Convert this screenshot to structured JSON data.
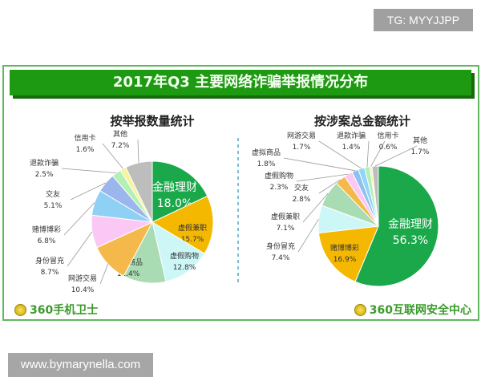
{
  "watermark_top": "TG: MYYJJPP",
  "watermark_bottom": "www.bymarynella.com",
  "title": "2017年Q3 主要网络诈骗举报情况分布",
  "logos": {
    "left": "360手机卫士",
    "right": "360互联网安全中心"
  },
  "chart_data": [
    {
      "type": "pie",
      "title": "按举报数量统计",
      "unit": "%",
      "slices": [
        {
          "label": "金融理财",
          "value": 18.0,
          "color": "#1aa84a",
          "placement": "inside"
        },
        {
          "label": "虚假兼职",
          "value": 15.7,
          "color": "#f5b800",
          "placement": "inside"
        },
        {
          "label": "虚假购物",
          "value": 12.8,
          "color": "#cdf6f6",
          "placement": "inside"
        },
        {
          "label": "虚拟商品",
          "value": 11.4,
          "color": "#a9dcb2",
          "placement": "inside"
        },
        {
          "label": "网游交易",
          "value": 10.4,
          "color": "#f4b94a",
          "placement": "outside"
        },
        {
          "label": "身份冒充",
          "value": 8.7,
          "color": "#fbc8f6",
          "placement": "outside"
        },
        {
          "label": "赌博博彩",
          "value": 6.8,
          "color": "#8fd0f5",
          "placement": "outside"
        },
        {
          "label": "交友",
          "value": 5.1,
          "color": "#9bb6ec",
          "placement": "outside"
        },
        {
          "label": "退款诈骗",
          "value": 2.5,
          "color": "#b2f0b4",
          "placement": "outside"
        },
        {
          "label": "信用卡",
          "value": 1.6,
          "color": "#f6f59c",
          "placement": "outside"
        },
        {
          "label": "其他",
          "value": 7.2,
          "color": "#bdbdbd",
          "placement": "outside"
        }
      ]
    },
    {
      "type": "pie",
      "title": "按涉案总金额统计",
      "unit": "%",
      "slices": [
        {
          "label": "金融理财",
          "value": 56.3,
          "color": "#1aa84a",
          "placement": "inside"
        },
        {
          "label": "赌博博彩",
          "value": 16.9,
          "color": "#f5b800",
          "placement": "inside"
        },
        {
          "label": "身份冒充",
          "value": 7.4,
          "color": "#cdf6f6",
          "placement": "outside"
        },
        {
          "label": "虚假兼职",
          "value": 7.1,
          "color": "#a9dcb2",
          "placement": "outside"
        },
        {
          "label": "交友",
          "value": 2.8,
          "color": "#f4b94a",
          "placement": "outside"
        },
        {
          "label": "虚假购物",
          "value": 2.3,
          "color": "#fbc8f6",
          "placement": "outside"
        },
        {
          "label": "虚拟商品",
          "value": 1.8,
          "color": "#8fc0f0",
          "placement": "outside"
        },
        {
          "label": "网游交易",
          "value": 1.7,
          "color": "#90d6f8",
          "placement": "outside"
        },
        {
          "label": "退款诈骗",
          "value": 1.4,
          "color": "#b2f0b4",
          "placement": "outside"
        },
        {
          "label": "信用卡",
          "value": 0.6,
          "color": "#f6f59c",
          "placement": "outside"
        },
        {
          "label": "其他",
          "value": 1.7,
          "color": "#bdbdbd",
          "placement": "outside"
        }
      ]
    }
  ]
}
